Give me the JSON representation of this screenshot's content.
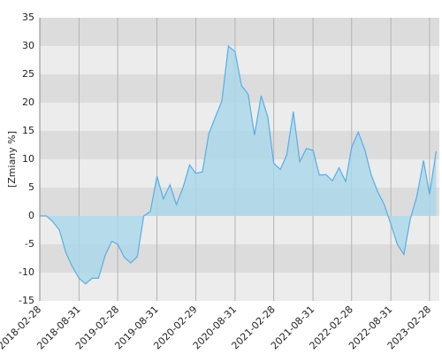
{
  "chart_data": {
    "type": "area",
    "y_label": "[Zmiany %]",
    "x": [
      "2018-02-28",
      "2018-03-31",
      "2018-04-30",
      "2018-05-31",
      "2018-06-30",
      "2018-07-31",
      "2018-08-31",
      "2018-09-30",
      "2018-10-31",
      "2018-11-30",
      "2018-12-31",
      "2019-01-31",
      "2019-02-28",
      "2019-03-31",
      "2019-04-30",
      "2019-05-31",
      "2019-06-30",
      "2019-07-31",
      "2019-08-31",
      "2019-09-30",
      "2019-10-31",
      "2019-11-30",
      "2019-12-31",
      "2020-01-31",
      "2020-02-29",
      "2020-03-31",
      "2020-04-30",
      "2020-05-31",
      "2020-06-30",
      "2020-07-31",
      "2020-08-31",
      "2020-09-30",
      "2020-10-31",
      "2020-11-30",
      "2020-12-31",
      "2021-01-31",
      "2021-02-28",
      "2021-03-31",
      "2021-04-30",
      "2021-05-31",
      "2021-06-30",
      "2021-07-31",
      "2021-08-31",
      "2021-09-30",
      "2021-10-31",
      "2021-11-30",
      "2021-12-31",
      "2022-01-31",
      "2022-02-28",
      "2022-03-31",
      "2022-04-30",
      "2022-05-31",
      "2022-06-30",
      "2022-07-31",
      "2022-08-31",
      "2022-09-30",
      "2022-10-31",
      "2022-11-30",
      "2022-12-31",
      "2023-01-31",
      "2023-02-28",
      "2023-03-31"
    ],
    "values": [
      0,
      0,
      -1,
      -2.5,
      -6.5,
      -9,
      -11,
      -12,
      -11,
      -11,
      -7,
      -4.5,
      -5,
      -7.3,
      -8.3,
      -7.2,
      0,
      0.8,
      7,
      3,
      5.5,
      2,
      5,
      9,
      7.5,
      7.8,
      14.5,
      17.5,
      20.3,
      30,
      29,
      23,
      21.5,
      14.3,
      21.2,
      17.5,
      9.3,
      8.2,
      10.8,
      18.4,
      9.6,
      11.9,
      11.6,
      7.2,
      7.3,
      6.2,
      8.5,
      6.1,
      12.1,
      14.8,
      11.8,
      7.2,
      4.3,
      2,
      -1.5,
      -5,
      -6.8,
      -0.5,
      3.5,
      9.8,
      3.8,
      11.4
    ],
    "color": "#5aace4",
    "fill": "#a9d8ec",
    "xlim": [
      "2018-02-28",
      "2023-04-15"
    ],
    "xticks": [
      "2018-02-28",
      "2018-08-31",
      "2019-02-28",
      "2019-08-31",
      "2020-02-29",
      "2020-08-31",
      "2021-02-28",
      "2021-08-31",
      "2022-02-28",
      "2022-08-31",
      "2023-02-28"
    ],
    "ylim": [
      -15,
      35
    ],
    "yticks": [
      -15,
      -10,
      -5,
      0,
      5,
      10,
      15,
      20,
      25,
      30,
      35
    ],
    "band_colors": [
      "#ececec",
      "#dcdcdc"
    ],
    "grid": true
  }
}
